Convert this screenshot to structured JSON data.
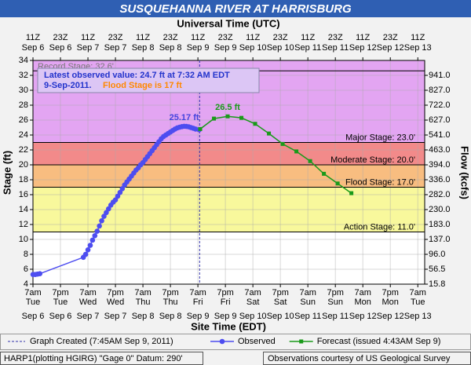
{
  "chart_data": {
    "type": "line",
    "title": "SUSQUEHANNA RIVER AT HARRISBURG",
    "x_label": "Site Time (EDT)",
    "x2_label": "Universal Time (UTC)",
    "y_label": "Stage (ft)",
    "y2_label": "Flow (kcfs)",
    "xlim": [
      "09-06 07:00",
      "09-13 10:00"
    ],
    "xticks": [
      {
        "value": "09-06 07:00",
        "label": "7am",
        "day": "Tue",
        "date": "Sep 6"
      },
      {
        "value": "09-06 19:00",
        "label": "7pm",
        "day": "Tue",
        "date": "Sep 6"
      },
      {
        "value": "09-07 07:00",
        "label": "7am",
        "day": "Wed",
        "date": "Sep 7"
      },
      {
        "value": "09-07 19:00",
        "label": "7pm",
        "day": "Wed",
        "date": "Sep 7"
      },
      {
        "value": "09-08 07:00",
        "label": "7am",
        "day": "Thu",
        "date": "Sep 8"
      },
      {
        "value": "09-08 19:00",
        "label": "7pm",
        "day": "Thu",
        "date": "Sep 8"
      },
      {
        "value": "09-09 07:00",
        "label": "7am",
        "day": "Fri",
        "date": "Sep 9"
      },
      {
        "value": "09-09 19:00",
        "label": "7pm",
        "day": "Fri",
        "date": "Sep 9"
      },
      {
        "value": "09-10 07:00",
        "label": "7am",
        "day": "Sat",
        "date": "Sep 10"
      },
      {
        "value": "09-10 19:00",
        "label": "7pm",
        "day": "Sat",
        "date": "Sep 10"
      },
      {
        "value": "09-11 07:00",
        "label": "7am",
        "day": "Sun",
        "date": "Sep 11"
      },
      {
        "value": "09-11 19:00",
        "label": "7pm",
        "day": "Sun",
        "date": "Sep 11"
      },
      {
        "value": "09-12 07:00",
        "label": "7am",
        "day": "Mon",
        "date": "Sep 12"
      },
      {
        "value": "09-12 19:00",
        "label": "7pm",
        "day": "Mon",
        "date": "Sep 12"
      },
      {
        "value": "09-13 07:00",
        "label": "7am",
        "day": "Tue",
        "date": "Sep 13"
      }
    ],
    "x2ticks": [
      {
        "value": "09-06 07:00",
        "label": "11Z",
        "date": "Sep 6"
      },
      {
        "value": "09-06 19:00",
        "label": "23Z",
        "date": "Sep 6"
      },
      {
        "value": "09-07 07:00",
        "label": "11Z",
        "date": "Sep 7"
      },
      {
        "value": "09-07 19:00",
        "label": "23Z",
        "date": "Sep 7"
      },
      {
        "value": "09-08 07:00",
        "label": "11Z",
        "date": "Sep 8"
      },
      {
        "value": "09-08 19:00",
        "label": "23Z",
        "date": "Sep 8"
      },
      {
        "value": "09-09 07:00",
        "label": "11Z",
        "date": "Sep 9"
      },
      {
        "value": "09-09 19:00",
        "label": "23Z",
        "date": "Sep 9"
      },
      {
        "value": "09-10 07:00",
        "label": "11Z",
        "date": "Sep 10"
      },
      {
        "value": "09-10 19:00",
        "label": "23Z",
        "date": "Sep 10"
      },
      {
        "value": "09-11 07:00",
        "label": "11Z",
        "date": "Sep 11"
      },
      {
        "value": "09-11 19:00",
        "label": "23Z",
        "date": "Sep 11"
      },
      {
        "value": "09-12 07:00",
        "label": "11Z",
        "date": "Sep 12"
      },
      {
        "value": "09-12 19:00",
        "label": "23Z",
        "date": "Sep 12"
      },
      {
        "value": "09-13 07:00",
        "label": "11Z",
        "date": "Sep 13"
      }
    ],
    "ylim": [
      4,
      34
    ],
    "yticks": [
      4,
      6,
      8,
      10,
      12,
      14,
      16,
      18,
      20,
      22,
      24,
      26,
      28,
      30,
      32,
      34
    ],
    "y2ticks": [
      15.8,
      56.5,
      {
        "value": 96,
        "label": "96.0"
      },
      {
        "value": 137,
        "label": "137.0"
      },
      {
        "value": 183,
        "label": "183.0"
      },
      {
        "value": 230,
        "label": "230.0"
      },
      {
        "value": 282,
        "label": "282.0"
      },
      {
        "value": 336,
        "label": "336.0"
      },
      {
        "value": 394,
        "label": "394.0"
      },
      {
        "value": 463,
        "label": "463.0"
      },
      {
        "value": 541,
        "label": "541.0"
      },
      {
        "value": 627,
        "label": "627.0"
      },
      {
        "value": 722,
        "label": "722.0"
      },
      {
        "value": 827,
        "label": "827.0"
      },
      {
        "value": 941,
        "label": "941.0"
      }
    ],
    "grid": true,
    "stage_levels": [
      {
        "label": "Record Stage: 32.6'",
        "value": 32.6,
        "fill": "#e3a5f2"
      },
      {
        "label": "Major Stage: 23.0'",
        "value": 23,
        "fill": "#e3a5f2"
      },
      {
        "label": "Moderate Stage: 20.0'",
        "value": 20,
        "fill": "#f28a8a"
      },
      {
        "label": "Flood Stage: 17.0'",
        "value": 17,
        "fill": "#f8bd80"
      },
      {
        "label": "Action Stage: 11.0'",
        "value": 11,
        "fill": "#f8f89c"
      }
    ],
    "created": {
      "label": "Graph Created (7:45AM Sep 9, 2011)",
      "x": "09-09 07:45"
    },
    "latest_text": [
      "Latest observed value: 24.7 ft at 7:32 AM EDT",
      "9-Sep-2011."
    ],
    "flood_text": "Flood Stage is 17 ft",
    "annotations": [
      {
        "text": "25.17 ft",
        "x": "09-09 01:00",
        "y": 25.17,
        "color": "#4444dd"
      },
      {
        "text": "26.5 ft",
        "x": "09-09 20:00",
        "y": 26.5,
        "color": "#1a9a1a"
      }
    ],
    "series": [
      {
        "name": "Observed",
        "color": "#4d4df0",
        "marker": "circle",
        "x": [
          "09-06 07:00",
          "09-06 08:00",
          "09-06 09:00",
          "09-06 10:00",
          "09-07 05:00",
          "09-07 06:00",
          "09-07 07:00",
          "09-07 08:00",
          "09-07 09:00",
          "09-07 10:00",
          "09-07 11:00",
          "09-07 12:00",
          "09-07 13:00",
          "09-07 14:00",
          "09-07 15:00",
          "09-07 16:00",
          "09-07 17:00",
          "09-07 18:00",
          "09-07 19:00",
          "09-07 20:00",
          "09-07 21:00",
          "09-07 22:00",
          "09-07 23:00",
          "09-08 00:00",
          "09-08 01:00",
          "09-08 02:00",
          "09-08 03:00",
          "09-08 04:00",
          "09-08 05:00",
          "09-08 06:00",
          "09-08 07:00",
          "09-08 08:00",
          "09-08 09:00",
          "09-08 10:00",
          "09-08 11:00",
          "09-08 12:00",
          "09-08 13:00",
          "09-08 14:00",
          "09-08 15:00",
          "09-08 16:00",
          "09-08 17:00",
          "09-08 18:00",
          "09-08 19:00",
          "09-08 20:00",
          "09-08 21:00",
          "09-08 22:00",
          "09-08 23:00",
          "09-09 00:00",
          "09-09 01:00",
          "09-09 02:00",
          "09-09 03:00",
          "09-09 04:00",
          "09-09 05:00",
          "09-09 06:00",
          "09-09 07:32"
        ],
        "values": [
          5.3,
          5.3,
          5.35,
          5.4,
          7.6,
          8.0,
          8.6,
          9.2,
          9.9,
          10.5,
          11.1,
          11.8,
          12.5,
          13.1,
          13.6,
          14.1,
          14.6,
          15.0,
          15.3,
          15.8,
          16.3,
          16.8,
          17.3,
          17.7,
          18.1,
          18.5,
          18.9,
          19.3,
          19.6,
          20.0,
          20.3,
          20.7,
          21.1,
          21.5,
          21.9,
          22.3,
          22.7,
          23.1,
          23.5,
          23.8,
          24.0,
          24.2,
          24.4,
          24.6,
          24.8,
          24.95,
          25.05,
          25.12,
          25.17,
          25.15,
          25.1,
          25.0,
          24.9,
          24.8,
          24.7
        ]
      },
      {
        "name": "Forecast (issued 4:43AM Sep 9)",
        "color": "#1a9a1a",
        "marker": "square",
        "x": [
          "09-09 08:00",
          "09-09 14:00",
          "09-09 20:00",
          "09-10 02:00",
          "09-10 08:00",
          "09-10 14:00",
          "09-10 20:00",
          "09-11 02:00",
          "09-11 08:00",
          "09-11 14:00",
          "09-11 20:00",
          "09-12 02:00"
        ],
        "values": [
          24.8,
          26.2,
          26.5,
          26.3,
          25.5,
          24.2,
          22.8,
          21.8,
          20.5,
          18.8,
          17.5,
          16.2
        ]
      }
    ],
    "footer_left": "HARP1(plotting HGIRG) \"Gage 0\" Datum: 290'",
    "footer_right": "Observations courtesy of US Geological Survey"
  }
}
